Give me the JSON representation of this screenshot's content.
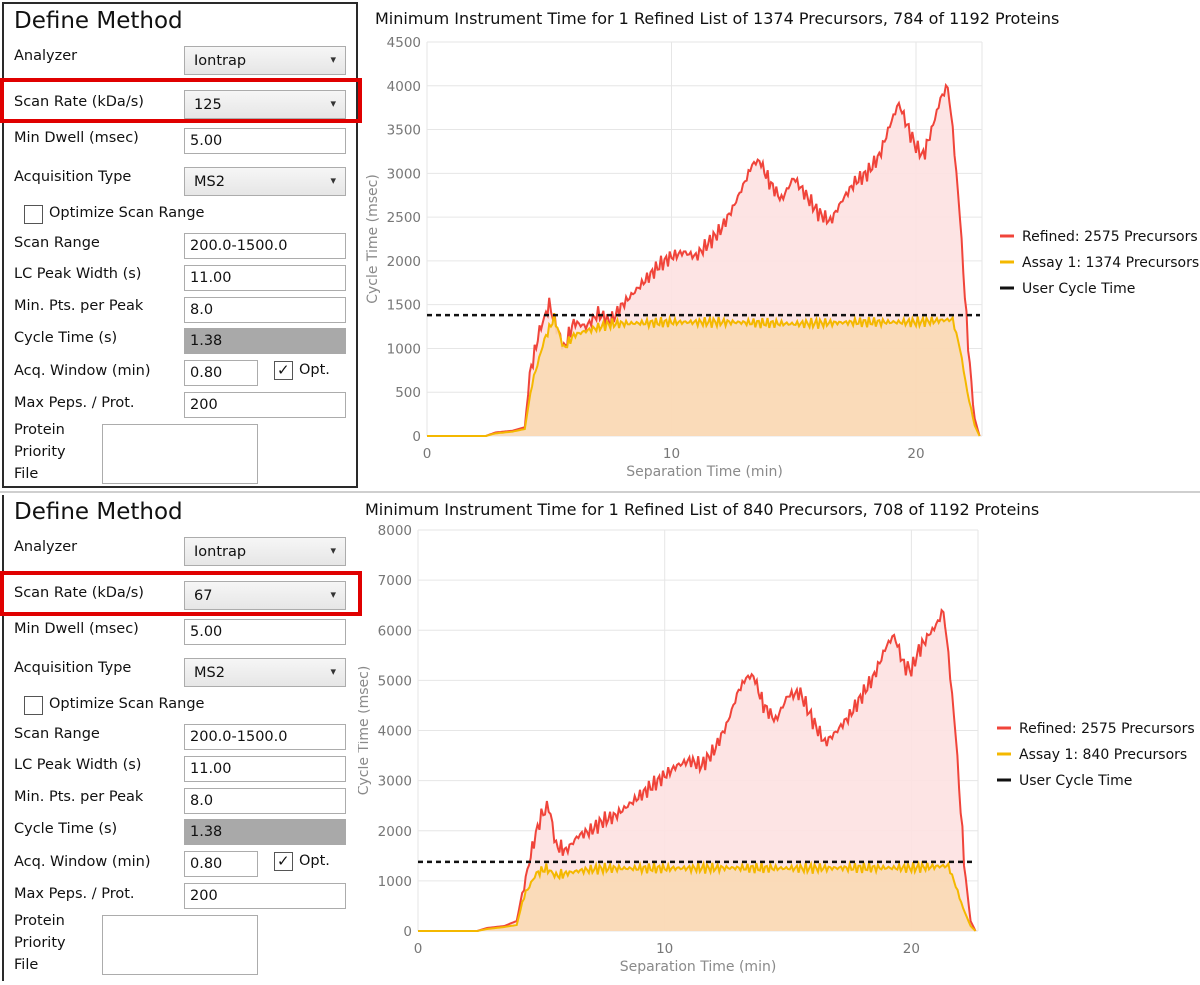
{
  "panels": [
    {
      "form": {
        "title": "Define Method",
        "analyzer_label": "Analyzer",
        "analyzer_value": "Iontrap",
        "scan_rate_label": "Scan Rate (kDa/s)",
        "scan_rate_value": "125",
        "min_dwell_label": "Min Dwell (msec)",
        "min_dwell_value": "5.00",
        "acq_type_label": "Acquisition Type",
        "acq_type_value": "MS2",
        "optimize_label": "Optimize Scan Range",
        "optimize_checked": false,
        "scan_range_label": "Scan Range",
        "scan_range_value": "200.0-1500.0",
        "lc_peak_label": "LC Peak Width (s)",
        "lc_peak_value": "11.00",
        "min_pts_label": "Min. Pts. per Peak",
        "min_pts_value": "8.0",
        "cycle_label": "Cycle Time (s)",
        "cycle_value": "1.38",
        "acq_window_label": "Acq. Window (min)",
        "acq_window_value": "0.80",
        "opt_label": "Opt.",
        "opt_checked": true,
        "max_peps_label": "Max Peps. / Prot.",
        "max_peps_value": "200",
        "priority_label_1": "Protein",
        "priority_label_2": "Priority",
        "priority_label_3": "File",
        "chevron": "▾"
      }
    },
    {
      "form": {
        "title": "Define Method",
        "analyzer_label": "Analyzer",
        "analyzer_value": "Iontrap",
        "scan_rate_label": "Scan Rate (kDa/s)",
        "scan_rate_value": "67",
        "min_dwell_label": "Min Dwell (msec)",
        "min_dwell_value": "5.00",
        "acq_type_label": "Acquisition Type",
        "acq_type_value": "MS2",
        "optimize_label": "Optimize Scan Range",
        "optimize_checked": false,
        "scan_range_label": "Scan Range",
        "scan_range_value": "200.0-1500.0",
        "lc_peak_label": "LC Peak Width (s)",
        "lc_peak_value": "11.00",
        "min_pts_label": "Min. Pts. per Peak",
        "min_pts_value": "8.0",
        "cycle_label": "Cycle Time (s)",
        "cycle_value": "1.38",
        "acq_window_label": "Acq. Window (min)",
        "acq_window_value": "0.80",
        "opt_label": "Opt.",
        "opt_checked": true,
        "max_peps_label": "Max Peps. / Prot.",
        "max_peps_value": "200",
        "priority_label_1": "Protein",
        "priority_label_2": "Priority",
        "priority_label_3": "File",
        "chevron": "▾"
      }
    }
  ],
  "colors": {
    "refined": "#f0443a",
    "refined_fill": "#fde1e1",
    "assay": "#f4b800",
    "assay_fill": "#f9d9b4",
    "user_cycle": "#111111",
    "highlight": "#e00000",
    "grid": "#e6e6e6"
  },
  "chart_data": [
    {
      "type": "area",
      "title": "Minimum Instrument Time for 1 Refined List of 1374 Precursors, 784 of 1192 Proteins",
      "xlabel": "Separation Time (min)",
      "ylabel": "Cycle Time (msec)",
      "xlim": [
        0,
        22.7
      ],
      "ylim": [
        0,
        4500
      ],
      "xticks": [
        0,
        10,
        20
      ],
      "yticks": [
        0,
        500,
        1000,
        1500,
        2000,
        2500,
        3000,
        3500,
        4000,
        4500
      ],
      "legend": [
        "Refined: 2575 Precursors",
        "Assay 1: 1374 Precursors",
        "User Cycle Time"
      ],
      "legend_position": "right",
      "user_cycle_time": 1380,
      "series": [
        {
          "name": "Refined: 2575 Precursors",
          "x": [
            0,
            2.4,
            2.8,
            3.5,
            4.0,
            4.2,
            4.6,
            5.0,
            5.3,
            5.6,
            6.0,
            6.5,
            7.0,
            7.5,
            8.0,
            8.5,
            9.0,
            9.5,
            10.0,
            10.5,
            11.0,
            11.5,
            12.0,
            12.5,
            13.0,
            13.3,
            13.6,
            14.0,
            14.5,
            15.0,
            15.5,
            16.0,
            16.5,
            17.0,
            17.5,
            18.0,
            18.5,
            19.0,
            19.3,
            19.7,
            20.0,
            20.3,
            20.7,
            21.0,
            21.3,
            21.5,
            21.8,
            22.0,
            22.2,
            22.4,
            22.6
          ],
          "y": [
            0,
            0,
            40,
            60,
            100,
            700,
            1200,
            1500,
            1250,
            1000,
            1300,
            1250,
            1400,
            1300,
            1500,
            1650,
            1800,
            1950,
            2050,
            2100,
            2050,
            2200,
            2350,
            2600,
            2900,
            3100,
            3150,
            2900,
            2700,
            2950,
            2750,
            2550,
            2450,
            2700,
            2900,
            3000,
            3200,
            3600,
            3800,
            3500,
            3300,
            3200,
            3550,
            3850,
            4000,
            3500,
            2500,
            1600,
            800,
            200,
            0
          ]
        },
        {
          "name": "Assay 1: 1374 Precursors",
          "x": [
            0,
            2.4,
            2.8,
            3.5,
            4.0,
            4.3,
            4.8,
            5.2,
            5.6,
            6.0,
            6.5,
            7.5,
            10.0,
            12.5,
            15.0,
            17.5,
            20.0,
            21.5,
            21.8,
            22.1,
            22.4,
            22.6
          ],
          "y": [
            0,
            0,
            30,
            50,
            80,
            600,
            1100,
            1350,
            1000,
            1150,
            1200,
            1280,
            1300,
            1300,
            1280,
            1300,
            1300,
            1330,
            1000,
            500,
            120,
            0
          ]
        }
      ]
    },
    {
      "type": "area",
      "title": "Minimum Instrument Time for 1 Refined List of 840 Precursors, 708 of 1192 Proteins",
      "xlabel": "Separation Time (min)",
      "ylabel": "Cycle Time (msec)",
      "xlim": [
        0,
        22.7
      ],
      "ylim": [
        0,
        8000
      ],
      "xticks": [
        0,
        10,
        20
      ],
      "yticks": [
        0,
        1000,
        2000,
        3000,
        4000,
        5000,
        6000,
        7000,
        8000
      ],
      "legend": [
        "Refined: 2575 Precursors",
        "Assay 1: 840 Precursors",
        "User Cycle Time"
      ],
      "legend_position": "right",
      "user_cycle_time": 1380,
      "series": [
        {
          "name": "Refined: 2575 Precursors",
          "x": [
            0,
            2.4,
            2.8,
            3.5,
            4.0,
            4.3,
            4.7,
            5.0,
            5.3,
            5.6,
            6.0,
            6.5,
            7.0,
            7.5,
            8.0,
            8.5,
            9.0,
            9.5,
            10.0,
            10.5,
            11.0,
            11.5,
            12.0,
            12.5,
            13.0,
            13.3,
            13.6,
            14.0,
            14.5,
            15.0,
            15.5,
            16.0,
            16.5,
            17.0,
            17.5,
            18.0,
            18.5,
            19.0,
            19.3,
            19.7,
            20.0,
            20.3,
            20.7,
            21.0,
            21.3,
            21.5,
            21.8,
            22.0,
            22.2,
            22.4,
            22.6
          ],
          "y": [
            0,
            0,
            60,
            100,
            200,
            900,
            1800,
            2300,
            2500,
            1700,
            1600,
            1900,
            2000,
            2200,
            2300,
            2500,
            2700,
            2900,
            3100,
            3300,
            3400,
            3300,
            3600,
            4100,
            4800,
            5050,
            5100,
            4500,
            4200,
            4700,
            4750,
            4200,
            3750,
            4000,
            4300,
            4700,
            5100,
            5700,
            5900,
            5300,
            5200,
            5600,
            5900,
            6100,
            6400,
            5500,
            3900,
            2400,
            1000,
            200,
            0
          ]
        },
        {
          "name": "Assay 1: 840 Precursors",
          "x": [
            0,
            2.4,
            2.8,
            3.5,
            4.0,
            4.3,
            4.8,
            5.2,
            5.6,
            6.0,
            6.5,
            7.5,
            10.0,
            12.5,
            15.0,
            17.5,
            20.0,
            21.5,
            21.8,
            22.1,
            22.4,
            22.6
          ],
          "y": [
            0,
            0,
            40,
            80,
            120,
            700,
            1150,
            1250,
            1100,
            1150,
            1200,
            1250,
            1250,
            1260,
            1250,
            1260,
            1260,
            1300,
            900,
            450,
            100,
            0
          ]
        }
      ]
    }
  ]
}
